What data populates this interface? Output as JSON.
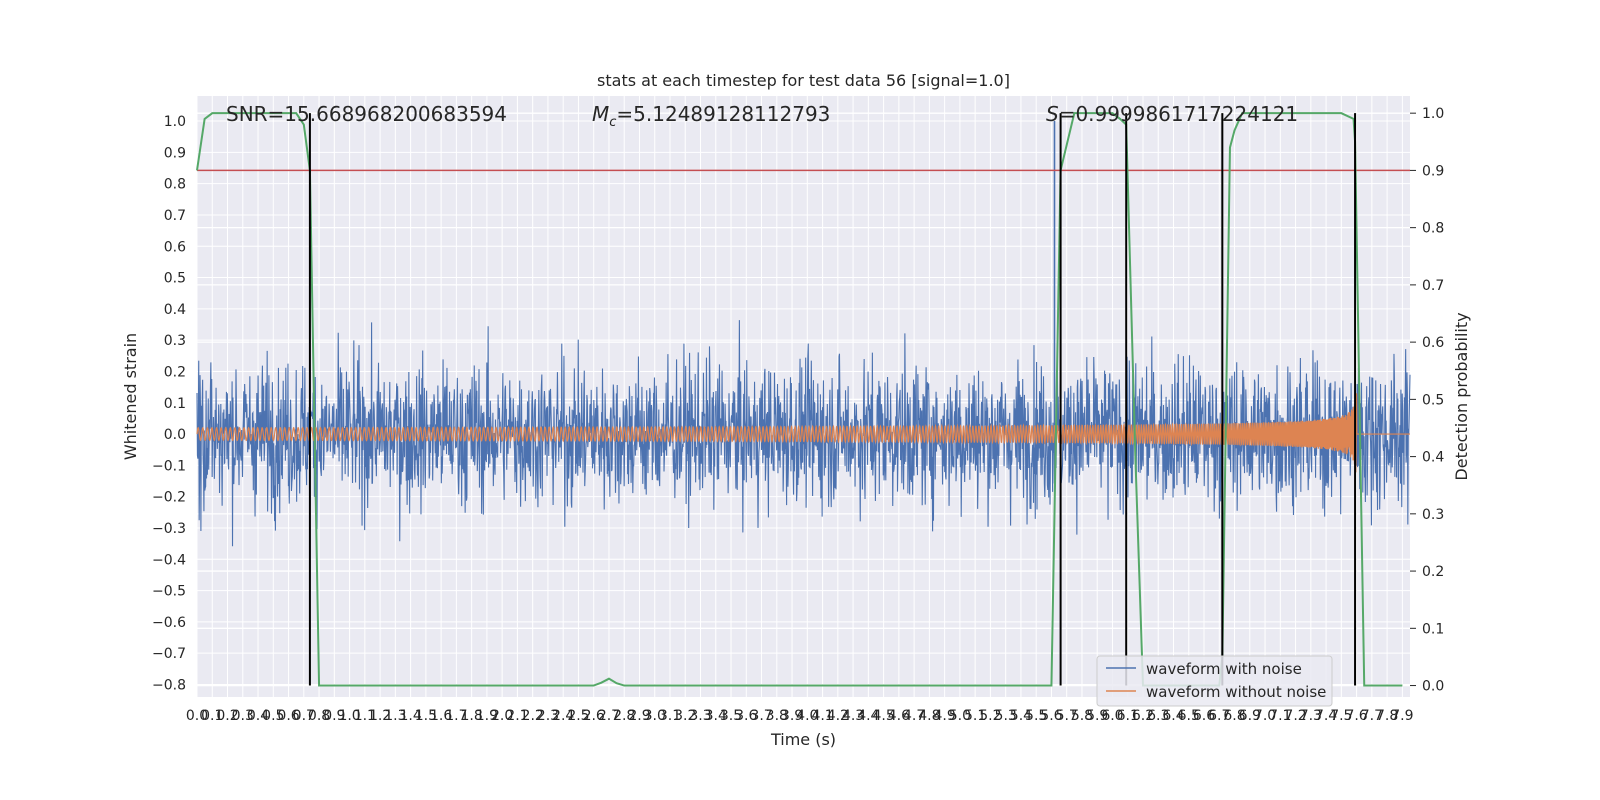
{
  "chart_data": {
    "type": "line",
    "title": "stats at each timestep for test data 56 [signal=1.0]",
    "xlabel": "Time (s)",
    "ylabel": "Whitened strain",
    "ylabel_right": "Detection probability",
    "xlim": [
      0.0,
      7.95
    ],
    "ylim": [
      -0.84,
      1.08
    ],
    "ylim_right": [
      -0.02,
      1.03
    ],
    "x_ticks": [
      0.0,
      0.1,
      0.2,
      0.3,
      0.4,
      0.5,
      0.6,
      0.7,
      0.8,
      0.9,
      1.0,
      1.1,
      1.2,
      1.3,
      1.4,
      1.5,
      1.6,
      1.7,
      1.8,
      1.9,
      2.0,
      2.1,
      2.2,
      2.3,
      2.4,
      2.5,
      2.6,
      2.7,
      2.8,
      2.9,
      3.0,
      3.1,
      3.2,
      3.3,
      3.4,
      3.5,
      3.6,
      3.7,
      3.8,
      3.9,
      4.0,
      4.1,
      4.2,
      4.3,
      4.4,
      4.5,
      4.6,
      4.7,
      4.8,
      4.9,
      5.0,
      5.1,
      5.2,
      5.3,
      5.4,
      5.5,
      5.6,
      5.7,
      5.8,
      5.9,
      6.0,
      6.1,
      6.2,
      6.3,
      6.4,
      6.5,
      6.6,
      6.7,
      6.8,
      6.9,
      7.0,
      7.1,
      7.2,
      7.3,
      7.4,
      7.5,
      7.6,
      7.7,
      7.8,
      7.9
    ],
    "x_tick_labels": [
      "0.0",
      "0.1",
      "0.2",
      "0.3",
      "0.4",
      "0.5",
      "0.6",
      "0.7",
      "0.8",
      "0.9",
      "1.0",
      "1.1",
      "1.2",
      "1.3",
      "1.4",
      "1.5",
      "1.6",
      "1.7",
      "1.8",
      "1.9",
      "2.0",
      "2.1",
      "2.2",
      "2.3",
      "2.4",
      "2.5",
      "2.6",
      "2.7",
      "2.8",
      "2.9",
      "3.0",
      "3.1",
      "3.2",
      "3.3",
      "3.4",
      "3.5",
      "3.6",
      "3.7",
      "3.8",
      "3.9",
      "4.0",
      "4.1",
      "4.2",
      "4.3",
      "4.4",
      "4.5",
      "4.6",
      "4.7",
      "4.8",
      "4.9",
      "5.0",
      "5.1",
      "5.2",
      "5.3",
      "5.4",
      "5.5",
      "5.6",
      "5.7",
      "5.8",
      "5.9",
      "6.0",
      "6.1",
      "6.2",
      "6.3",
      "6.4",
      "6.5",
      "6.6",
      "6.7",
      "6.8",
      "6.9",
      "7.0",
      "7.1",
      "7.2",
      "7.3",
      "7.4",
      "7.5",
      "7.6",
      "7.7",
      "7.8",
      "7.9"
    ],
    "y_ticks": [
      1.0,
      0.9,
      0.8,
      0.7,
      0.6,
      0.5,
      0.4,
      0.3,
      0.2,
      0.1,
      0.0,
      -0.1,
      -0.2,
      -0.3,
      -0.4,
      -0.5,
      -0.6,
      -0.7,
      -0.8
    ],
    "y_tick_labels": [
      "1.0",
      "0.9",
      "0.8",
      "0.7",
      "0.6",
      "0.5",
      "0.4",
      "0.3",
      "0.2",
      "0.1",
      "0.0",
      "−0.1",
      "−0.2",
      "−0.3",
      "−0.4",
      "−0.5",
      "−0.6",
      "−0.7",
      "−0.8"
    ],
    "y_ticks_right": [
      1.0,
      0.9,
      0.8,
      0.7,
      0.6,
      0.5,
      0.4,
      0.3,
      0.2,
      0.1,
      0.0
    ],
    "y_tick_labels_right": [
      "1.0",
      "0.9",
      "0.8",
      "0.7",
      "0.6",
      "0.5",
      "0.4",
      "0.3",
      "0.2",
      "0.1",
      "0.0"
    ],
    "grid": true,
    "legend_position": "bottom-right",
    "annotations": {
      "snr": "SNR=15.668968200683594",
      "mc_symbol": "M",
      "mc_subscript": "c",
      "mc_value": "=5.12489128112793",
      "s_symbol": "S",
      "s_value": "=0.9999861717224121"
    },
    "threshold": {
      "axis": "right",
      "value": 0.9,
      "color": "#c44e52"
    },
    "vertical_lines": [
      0.74,
      5.66,
      6.09,
      6.72,
      7.59
    ],
    "series": [
      {
        "name": "waveform with noise",
        "axis": "left",
        "color": "#4c72b0",
        "noise_amplitude": 0.16,
        "max": 1.0,
        "min": -0.76
      },
      {
        "name": "waveform without noise",
        "axis": "left",
        "color": "#dd8452",
        "chirp_start_amplitude": 0.02,
        "chirp_peak_amplitude": 0.31,
        "chirp_min": -0.28,
        "merger_time": 7.6
      },
      {
        "axis": "right",
        "color": "#55a868",
        "x": [
          0.0,
          0.05,
          0.1,
          0.2,
          0.3,
          0.4,
          0.5,
          0.6,
          0.65,
          0.7,
          0.74,
          0.8,
          0.9,
          1.0,
          2.0,
          2.5,
          2.6,
          2.65,
          2.7,
          2.75,
          2.8,
          3.0,
          4.0,
          5.0,
          5.5,
          5.6,
          5.66,
          5.75,
          6.0,
          6.05,
          6.09,
          6.15,
          6.2,
          6.5,
          6.7,
          6.72,
          6.77,
          6.8,
          6.85,
          6.9,
          7.0,
          7.5,
          7.58,
          7.59,
          7.65,
          7.9
        ],
        "y": [
          0.9,
          0.99,
          1.0,
          1.0,
          1.0,
          1.0,
          1.0,
          1.0,
          1.0,
          0.98,
          0.9,
          0.0,
          0.0,
          0.0,
          0.0,
          0.0,
          0.0,
          0.005,
          0.012,
          0.004,
          0.0,
          0.0,
          0.0,
          0.0,
          0.0,
          0.0,
          0.9,
          1.0,
          1.0,
          0.99,
          0.98,
          0.4,
          0.0,
          0.0,
          0.0,
          0.05,
          0.94,
          0.97,
          1.0,
          1.0,
          1.0,
          1.0,
          0.99,
          0.95,
          0.0,
          0.0
        ]
      }
    ]
  }
}
